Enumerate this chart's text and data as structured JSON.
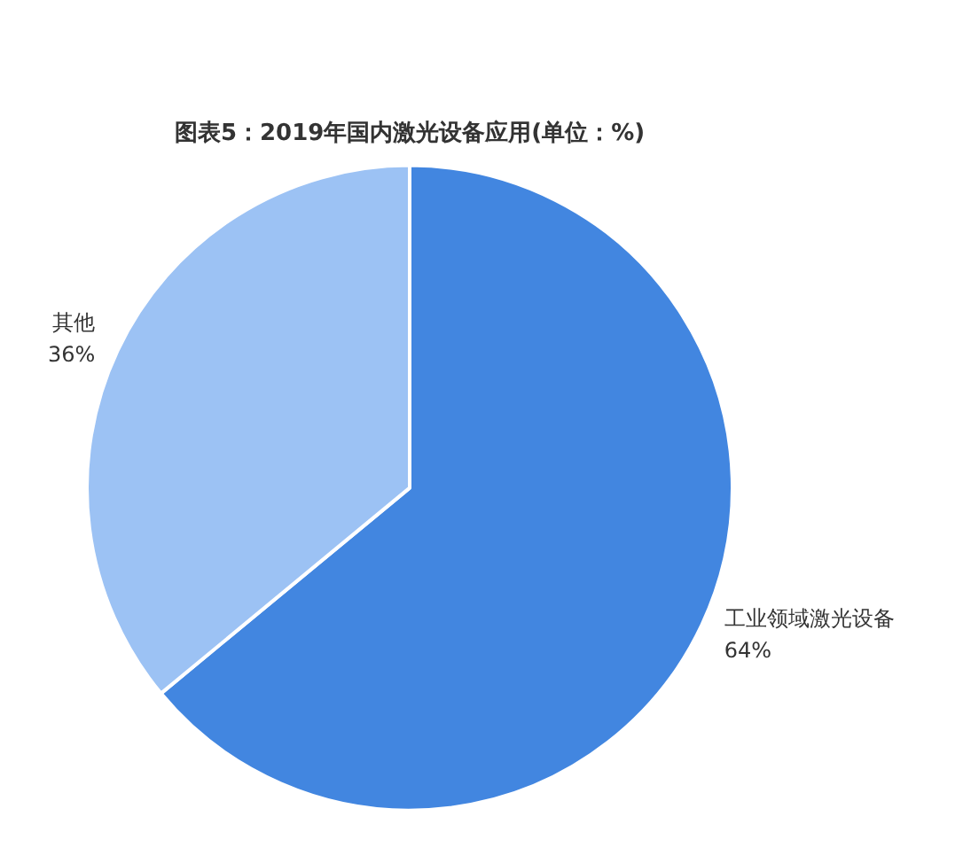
{
  "chart_data": {
    "type": "pie",
    "title": "图表5：2019年国内激光设备应用(单位：%)",
    "categories": [
      "工业领域激光设备",
      "其他"
    ],
    "values": [
      64,
      36
    ],
    "value_labels": [
      "64%",
      "36%"
    ],
    "colors": [
      "#4286e0",
      "#9cc2f4"
    ]
  }
}
